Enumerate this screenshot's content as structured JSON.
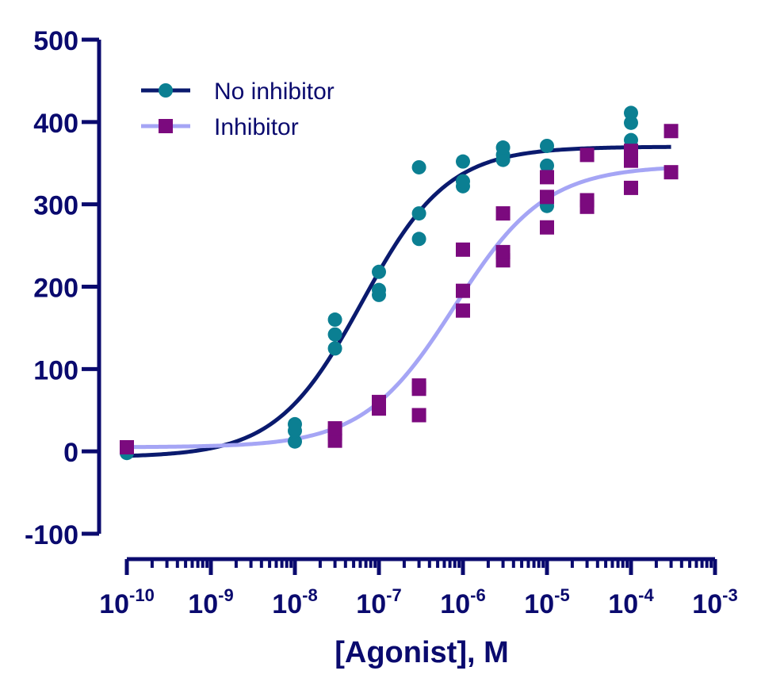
{
  "chart_data": {
    "type": "scatter",
    "title": "",
    "xlabel": "[Agonist], M",
    "ylabel": "",
    "x_scale": "log",
    "xlim": [
      1e-10,
      0.001
    ],
    "ylim": [
      -100,
      500
    ],
    "y_ticks": [
      -100,
      0,
      100,
      200,
      300,
      400,
      500
    ],
    "x_tick_labels": [
      {
        "base": "10",
        "exp": "-10"
      },
      {
        "base": "10",
        "exp": "-9"
      },
      {
        "base": "10",
        "exp": "-8"
      },
      {
        "base": "10",
        "exp": "-7"
      },
      {
        "base": "10",
        "exp": "-6"
      },
      {
        "base": "10",
        "exp": "-5"
      },
      {
        "base": "10",
        "exp": "-4"
      },
      {
        "base": "10",
        "exp": "-3"
      }
    ],
    "grid": false,
    "legend_position": "top-left",
    "series": [
      {
        "name": "No inhibitor",
        "marker": "circle",
        "marker_color": "#0b7f92",
        "line_color": "#0a1a6e",
        "fit": {
          "bottom": -7,
          "top": 370,
          "logEC50": -7.2,
          "hill": 0.85
        },
        "points": [
          {
            "x": 1e-10,
            "y": -2
          },
          {
            "x": 1e-08,
            "y": 12
          },
          {
            "x": 1e-08,
            "y": 25
          },
          {
            "x": 1e-08,
            "y": 33
          },
          {
            "x": 3e-08,
            "y": 125
          },
          {
            "x": 3e-08,
            "y": 142
          },
          {
            "x": 3e-08,
            "y": 160
          },
          {
            "x": 1e-07,
            "y": 190
          },
          {
            "x": 1e-07,
            "y": 196
          },
          {
            "x": 1e-07,
            "y": 218
          },
          {
            "x": 3e-07,
            "y": 258
          },
          {
            "x": 3e-07,
            "y": 289
          },
          {
            "x": 3e-07,
            "y": 345
          },
          {
            "x": 1e-06,
            "y": 322
          },
          {
            "x": 1e-06,
            "y": 328
          },
          {
            "x": 1e-06,
            "y": 352
          },
          {
            "x": 3e-06,
            "y": 354
          },
          {
            "x": 3e-06,
            "y": 360
          },
          {
            "x": 3e-06,
            "y": 369
          },
          {
            "x": 1e-05,
            "y": 298
          },
          {
            "x": 1e-05,
            "y": 347
          },
          {
            "x": 1e-05,
            "y": 371
          },
          {
            "x": 0.0001,
            "y": 378
          },
          {
            "x": 0.0001,
            "y": 399
          },
          {
            "x": 0.0001,
            "y": 411
          }
        ]
      },
      {
        "name": "Inhibitor",
        "marker": "square",
        "marker_color": "#7b0a7e",
        "line_color": "#a5a5f5",
        "fit": {
          "bottom": 5,
          "top": 347,
          "logEC50": -6.1,
          "hill": 0.8
        },
        "points": [
          {
            "x": 1e-10,
            "y": 5
          },
          {
            "x": 3e-08,
            "y": 13
          },
          {
            "x": 3e-08,
            "y": 22
          },
          {
            "x": 3e-08,
            "y": 28
          },
          {
            "x": 1e-07,
            "y": 52
          },
          {
            "x": 1e-07,
            "y": 57
          },
          {
            "x": 1e-07,
            "y": 60
          },
          {
            "x": 3e-07,
            "y": 44
          },
          {
            "x": 3e-07,
            "y": 76
          },
          {
            "x": 3e-07,
            "y": 80
          },
          {
            "x": 1e-06,
            "y": 171
          },
          {
            "x": 1e-06,
            "y": 195
          },
          {
            "x": 1e-06,
            "y": 245
          },
          {
            "x": 3e-06,
            "y": 232
          },
          {
            "x": 3e-06,
            "y": 242
          },
          {
            "x": 3e-06,
            "y": 289
          },
          {
            "x": 1e-05,
            "y": 272
          },
          {
            "x": 1e-05,
            "y": 309
          },
          {
            "x": 1e-05,
            "y": 333
          },
          {
            "x": 3e-05,
            "y": 297
          },
          {
            "x": 3e-05,
            "y": 305
          },
          {
            "x": 3e-05,
            "y": 360
          },
          {
            "x": 0.0001,
            "y": 320
          },
          {
            "x": 0.0001,
            "y": 353
          },
          {
            "x": 0.0001,
            "y": 365
          },
          {
            "x": 0.0003,
            "y": 339
          },
          {
            "x": 0.0003,
            "y": 389
          }
        ]
      }
    ]
  },
  "colors": {
    "axis": "#0a0a6e"
  }
}
